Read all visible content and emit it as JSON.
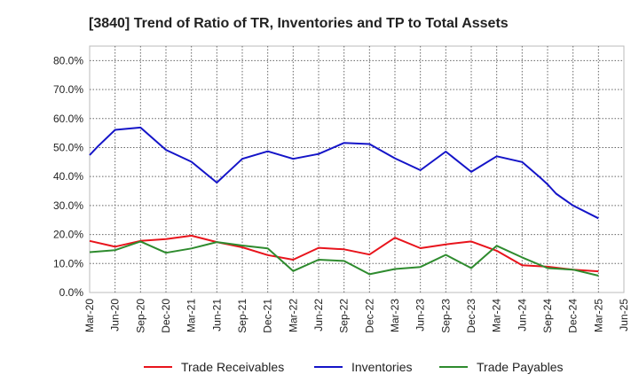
{
  "chart_data": {
    "type": "line",
    "title": "[3840]  Trend of Ratio of TR, Inventories and TP to Total Assets",
    "xlabel": "",
    "ylabel": "",
    "x_ticks": [
      "Mar-20",
      "Jun-20",
      "Sep-20",
      "Dec-20",
      "Mar-21",
      "Jun-21",
      "Sep-21",
      "Dec-21",
      "Mar-22",
      "Jun-22",
      "Sep-22",
      "Dec-22",
      "Mar-23",
      "Jun-23",
      "Sep-23",
      "Dec-23",
      "Mar-24",
      "Jun-24",
      "Sep-24",
      "Dec-24",
      "Mar-25",
      "Jun-25"
    ],
    "y_ticks": [
      "0.0%",
      "10.0%",
      "20.0%",
      "30.0%",
      "40.0%",
      "50.0%",
      "60.0%",
      "70.0%",
      "80.0%"
    ],
    "ylim": [
      0,
      85
    ],
    "grid": true,
    "legend_position": "bottom",
    "x": [
      "Mar-20",
      "Apr-20",
      "Jun-20",
      "Sep-20",
      "Dec-20",
      "Mar-21",
      "Jun-21",
      "Sep-21",
      "Dec-21",
      "Mar-22",
      "Jun-22",
      "Sep-22",
      "Dec-22",
      "Jan-23",
      "Mar-23",
      "Jun-23",
      "Sep-23",
      "Dec-23",
      "Mar-24",
      "Jun-24",
      "Aug-24",
      "Sep-24",
      "Oct-24",
      "Dec-24",
      "Mar-25"
    ],
    "series": [
      {
        "name": "Trade Receivables",
        "color": "#e8141c",
        "values": [
          17.8,
          null,
          15.8,
          17.8,
          18.4,
          19.6,
          17.4,
          15.6,
          12.9,
          11.3,
          15.4,
          14.9,
          13.1,
          null,
          18.9,
          15.3,
          16.6,
          17.6,
          14.4,
          9.4,
          null,
          8.9,
          null,
          7.9,
          7.3
        ]
      },
      {
        "name": "Inventories",
        "color": "#1414c8",
        "values": [
          47.4,
          50.5,
          56.1,
          56.9,
          49.2,
          45.1,
          37.9,
          46.1,
          48.7,
          46.1,
          47.8,
          51.6,
          51.2,
          null,
          46.3,
          42.2,
          48.6,
          41.6,
          47.0,
          45.0,
          40.0,
          37.3,
          34.1,
          30.0,
          25.6
        ]
      },
      {
        "name": "Trade Payables",
        "color": "#2e8b2e",
        "values": [
          13.9,
          null,
          14.6,
          17.6,
          13.7,
          15.2,
          17.4,
          16.2,
          15.2,
          7.4,
          11.3,
          10.9,
          6.3,
          null,
          8.1,
          8.8,
          13.0,
          8.4,
          16.1,
          12.1,
          null,
          8.4,
          null,
          7.9,
          5.8
        ]
      }
    ]
  }
}
